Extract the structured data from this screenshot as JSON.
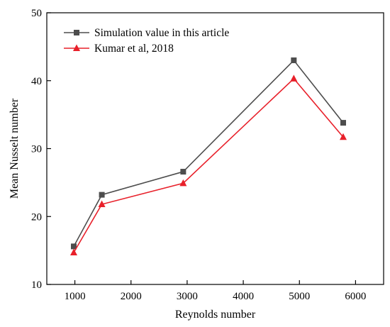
{
  "chart_data": {
    "type": "line",
    "xlabel": "Reynolds number",
    "ylabel": "Mean Nusselt number",
    "xlim": [
      500,
      6500
    ],
    "ylim": [
      10,
      50
    ],
    "xticks": [
      "1000",
      "2000",
      "3000",
      "4000",
      "5000",
      "6000"
    ],
    "yticks": [
      "10",
      "20",
      "30",
      "40",
      "50"
    ],
    "grid": false,
    "legend_position": "top-left",
    "series": [
      {
        "name": "Simulation value in this article",
        "color": "#4d4d4d",
        "marker": "square",
        "x": [
          980,
          1480,
          2930,
          4900,
          5780
        ],
        "y": [
          15.6,
          23.2,
          26.6,
          43.0,
          33.8
        ]
      },
      {
        "name": "Kumar et al, 2018",
        "color": "#e8202a",
        "marker": "triangle",
        "x": [
          980,
          1480,
          2930,
          4900,
          5780
        ],
        "y": [
          14.7,
          21.8,
          24.9,
          40.3,
          31.7
        ]
      }
    ]
  }
}
